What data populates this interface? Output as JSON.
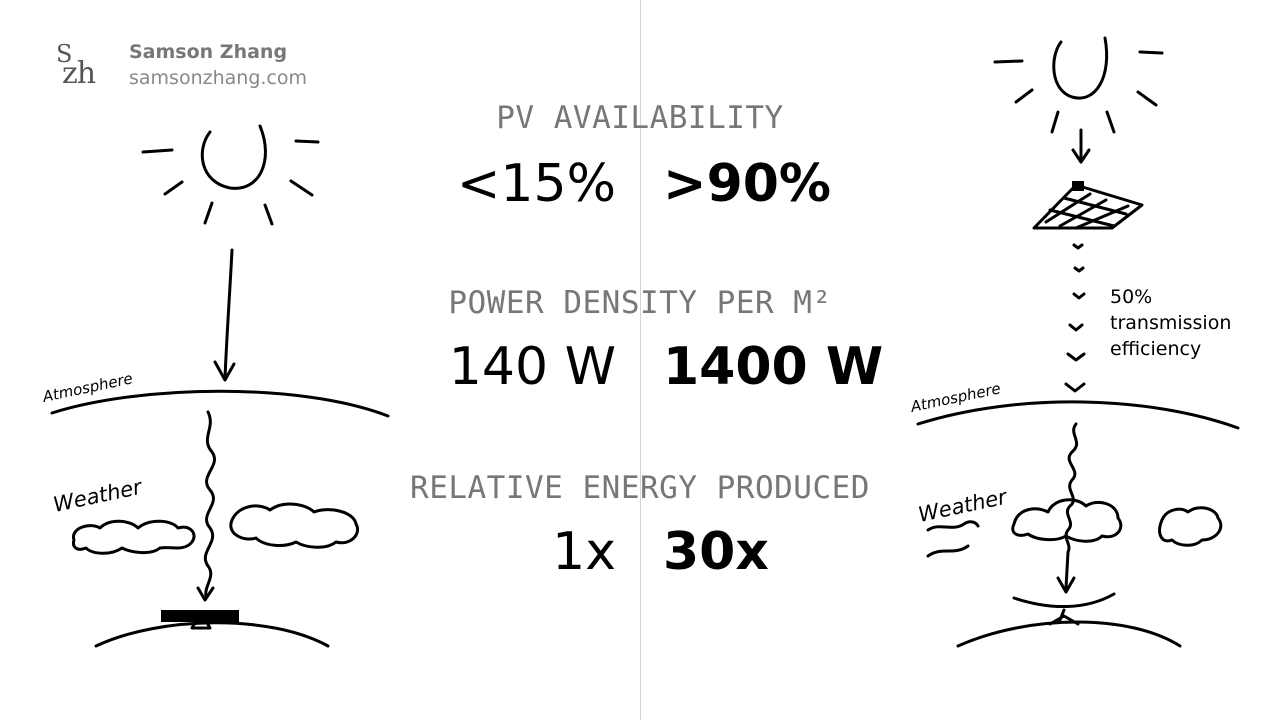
{
  "author": {
    "logo_top": "S",
    "logo_bottom": "zh",
    "name": "Samson Zhang",
    "website": "samsonzhang.com"
  },
  "metrics": [
    {
      "label": "PV AVAILABILITY",
      "left_value": "<15%",
      "right_value": ">90%"
    },
    {
      "label": "POWER DENSITY PER M²",
      "left_value": "140 W",
      "right_value": "1400 W"
    },
    {
      "label": "RELATIVE ENERGY PRODUCED",
      "left_value": "1x",
      "right_value": "30x"
    }
  ],
  "left_sketch": {
    "atmosphere_label": "Atmosphere",
    "weather_label": "Weather"
  },
  "right_sketch": {
    "atmosphere_label": "Atmosphere",
    "weather_label": "Weather",
    "efficiency_note": "50% transmission efficiency"
  }
}
